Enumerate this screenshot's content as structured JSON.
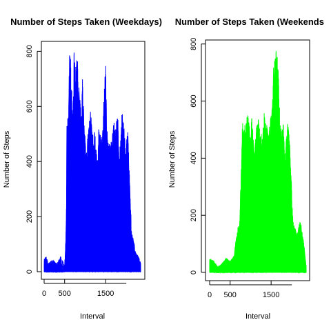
{
  "chart_data": [
    {
      "type": "line",
      "title": "Number of Steps Taken (Weekdays)",
      "xlabel": "Interval",
      "ylabel": "Number of Steps",
      "color": "#0000ff",
      "xlim": [
        0,
        2355
      ],
      "ylim": [
        0,
        806
      ],
      "x_ticks": [
        0,
        500,
        1500
      ],
      "y_ticks": [
        0,
        200,
        400,
        600,
        800
      ],
      "peaks": [
        [
          0,
          47
        ],
        [
          50,
          55
        ],
        [
          100,
          30
        ],
        [
          200,
          45
        ],
        [
          300,
          30
        ],
        [
          400,
          55
        ],
        [
          455,
          40
        ],
        [
          500,
          25
        ],
        [
          515,
          60
        ],
        [
          530,
          130
        ],
        [
          545,
          230
        ],
        [
          555,
          540
        ],
        [
          600,
          600
        ],
        [
          615,
          806
        ],
        [
          630,
          790
        ],
        [
          650,
          770
        ],
        [
          700,
          560
        ],
        [
          715,
          680
        ],
        [
          730,
          800
        ],
        [
          750,
          760
        ],
        [
          800,
          770
        ],
        [
          815,
          800
        ],
        [
          835,
          620
        ],
        [
          850,
          700
        ],
        [
          905,
          560
        ],
        [
          930,
          720
        ],
        [
          1000,
          480
        ],
        [
          1030,
          450
        ],
        [
          1100,
          540
        ],
        [
          1130,
          600
        ],
        [
          1200,
          480
        ],
        [
          1230,
          520
        ],
        [
          1300,
          400
        ],
        [
          1330,
          520
        ],
        [
          1400,
          480
        ],
        [
          1430,
          540
        ],
        [
          1500,
          760
        ],
        [
          1530,
          520
        ],
        [
          1600,
          460
        ],
        [
          1630,
          480
        ],
        [
          1700,
          550
        ],
        [
          1730,
          520
        ],
        [
          1800,
          570
        ],
        [
          1830,
          400
        ],
        [
          1900,
          590
        ],
        [
          1930,
          560
        ],
        [
          2000,
          420
        ],
        [
          2030,
          560
        ],
        [
          2100,
          280
        ],
        [
          2130,
          150
        ],
        [
          2200,
          100
        ],
        [
          2230,
          70
        ],
        [
          2300,
          55
        ],
        [
          2355,
          30
        ]
      ]
    },
    {
      "type": "line",
      "title": "Number of Steps Taken (Weekends)",
      "xlabel": "Interval",
      "ylabel": "Number of Steps",
      "color": "#00ff00",
      "xlim": [
        0,
        2355
      ],
      "ylim": [
        0,
        785
      ],
      "x_ticks": [
        0,
        500,
        1500
      ],
      "y_ticks": [
        0,
        200,
        400,
        600,
        800
      ],
      "peaks": [
        [
          0,
          50
        ],
        [
          100,
          40
        ],
        [
          200,
          20
        ],
        [
          300,
          30
        ],
        [
          400,
          50
        ],
        [
          500,
          40
        ],
        [
          600,
          60
        ],
        [
          630,
          100
        ],
        [
          700,
          170
        ],
        [
          730,
          160
        ],
        [
          800,
          530
        ],
        [
          815,
          520
        ],
        [
          830,
          545
        ],
        [
          845,
          510
        ],
        [
          900,
          540
        ],
        [
          930,
          560
        ],
        [
          1000,
          480
        ],
        [
          1030,
          560
        ],
        [
          1100,
          400
        ],
        [
          1130,
          520
        ],
        [
          1200,
          540
        ],
        [
          1230,
          480
        ],
        [
          1300,
          520
        ],
        [
          1330,
          560
        ],
        [
          1400,
          520
        ],
        [
          1430,
          480
        ],
        [
          1500,
          560
        ],
        [
          1530,
          580
        ],
        [
          1545,
          700
        ],
        [
          1600,
          780
        ],
        [
          1615,
          785
        ],
        [
          1630,
          760
        ],
        [
          1645,
          780
        ],
        [
          1700,
          640
        ],
        [
          1730,
          500
        ],
        [
          1800,
          520
        ],
        [
          1830,
          400
        ],
        [
          1900,
          520
        ],
        [
          1930,
          530
        ],
        [
          2000,
          300
        ],
        [
          2030,
          180
        ],
        [
          2100,
          150
        ],
        [
          2130,
          130
        ],
        [
          2200,
          180
        ],
        [
          2230,
          170
        ],
        [
          2300,
          100
        ],
        [
          2355,
          20
        ]
      ]
    }
  ]
}
